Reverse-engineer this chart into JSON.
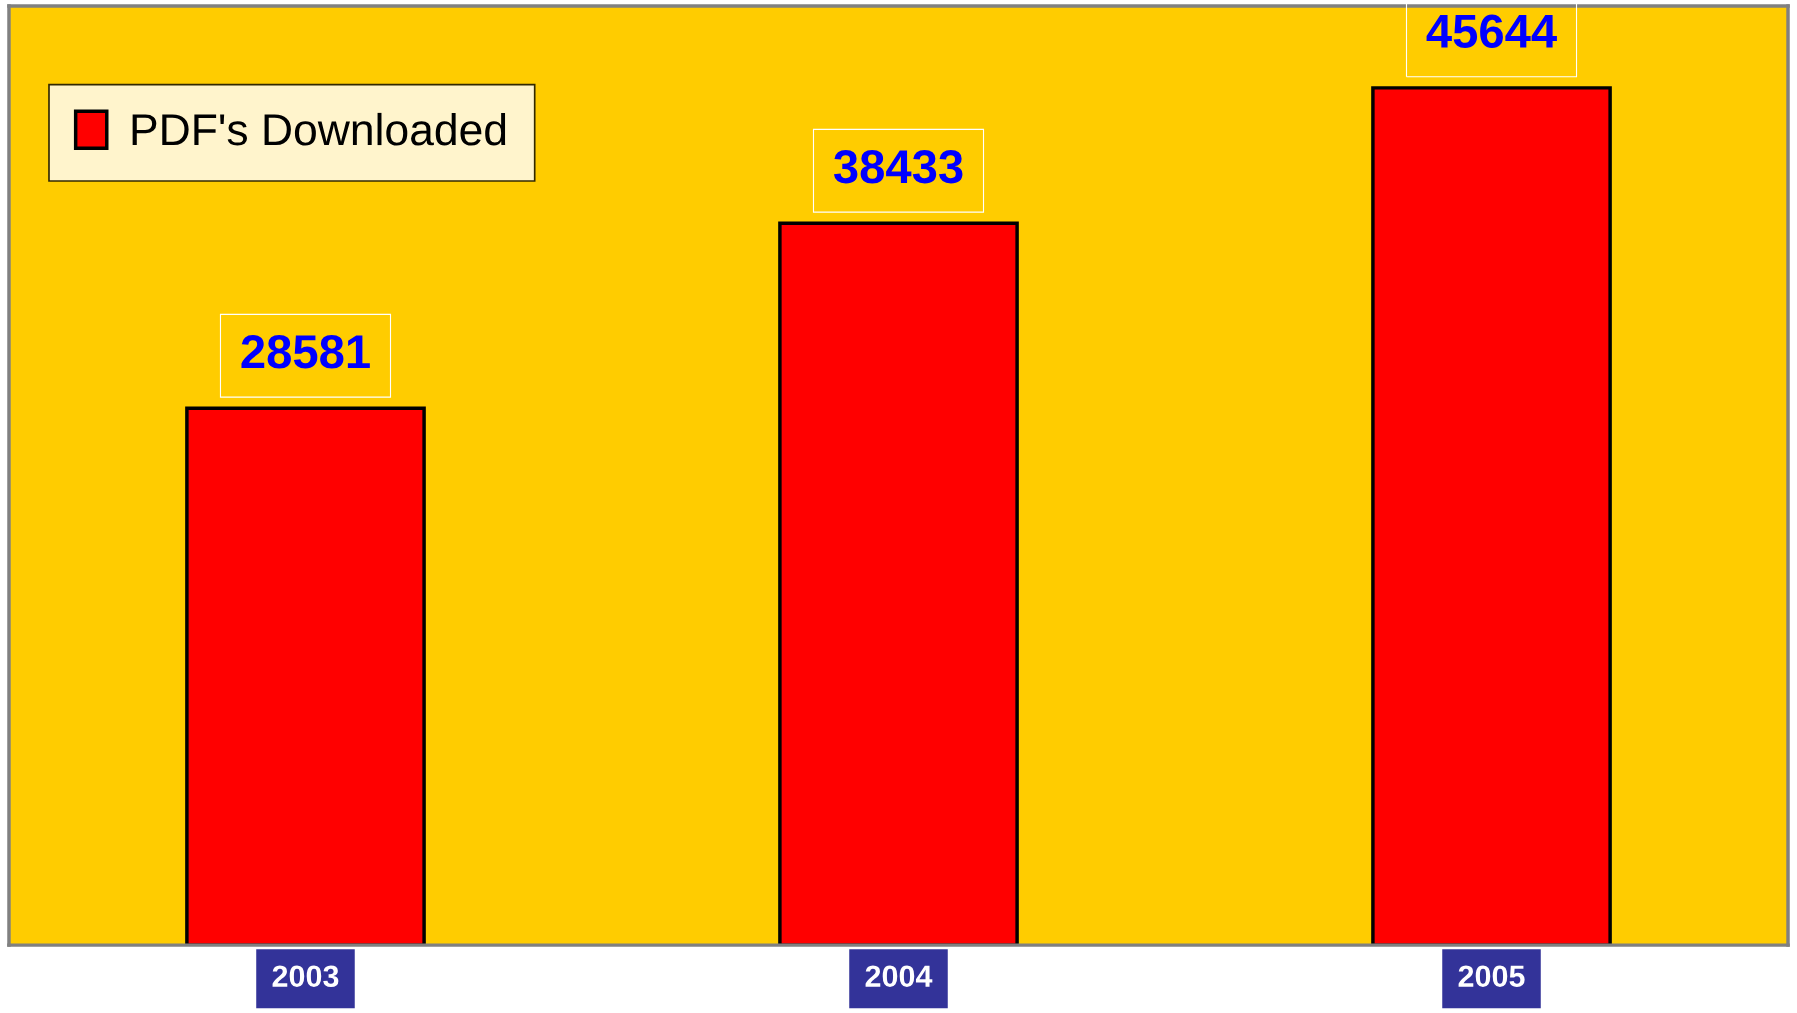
{
  "chart_data": {
    "type": "bar",
    "categories": [
      "2003",
      "2004",
      "2005"
    ],
    "series": [
      {
        "name": "PDF's Downloaded",
        "color": "#ff0000",
        "values": [
          28581,
          38433,
          45644
        ]
      }
    ],
    "ylim": [
      0,
      50000
    ],
    "data_labels": true,
    "legend": "top left",
    "grid": false,
    "tick_labels": "x"
  }
}
